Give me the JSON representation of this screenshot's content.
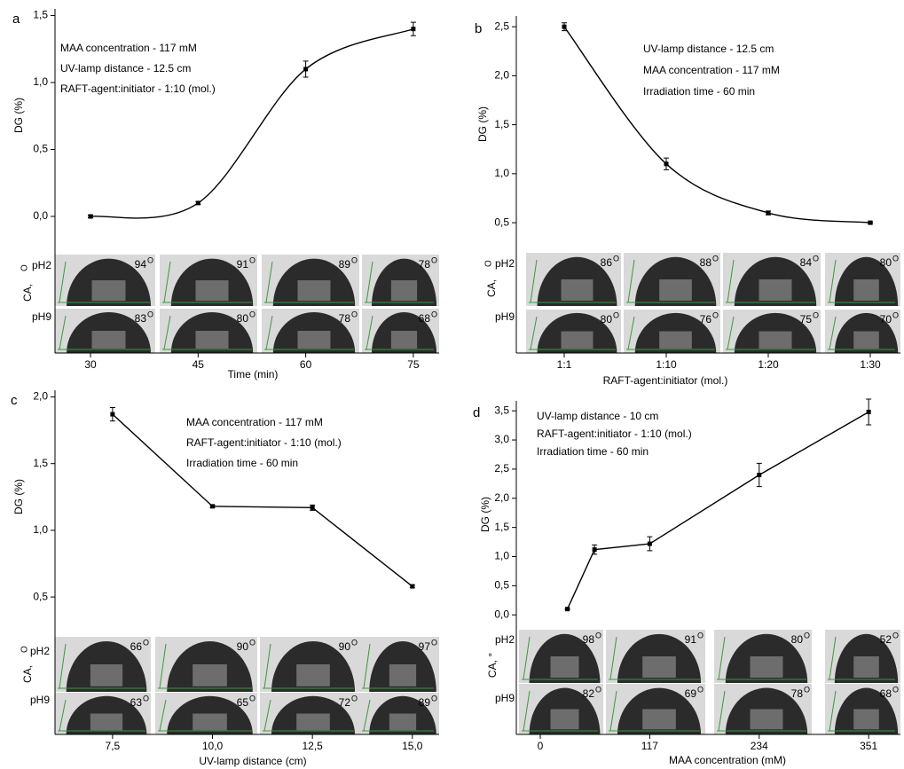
{
  "chart_data": [
    {
      "type": "line",
      "smooth": true,
      "panel": "a",
      "color": "#000000",
      "annotations": [
        "MAA concentration - 117 mM",
        "UV-lamp distance - 12.5 cm",
        "RAFT-agent:initiator - 1:10 (mol.)"
      ],
      "x": [
        30,
        45,
        60,
        75
      ],
      "values": [
        0,
        0.1,
        1.1,
        1.4
      ],
      "errors": [
        0.01,
        0.01,
        0.06,
        0.05
      ],
      "xlim": [
        25.05,
        78.6
      ],
      "xticks": [
        30,
        45,
        60,
        75
      ],
      "ylim": [
        -1.02,
        1.55
      ],
      "yticks": [
        {
          "value": 0,
          "label": "0,0"
        },
        {
          "value": 0.5,
          "label": "0,5"
        },
        {
          "value": 1,
          "label": "1,0"
        },
        {
          "value": 1.5,
          "label": "1,5"
        }
      ],
      "x_label": "Time (min)",
      "y_label": "DG (%)",
      "ca_label": "CA, ",
      "angle_unit": "O",
      "insets": [
        {
          "label": "pH2",
          "angles": [
            94,
            91,
            89,
            78
          ]
        },
        {
          "label": "pH9",
          "angles": [
            83,
            80,
            78,
            68
          ]
        }
      ]
    },
    {
      "type": "line",
      "smooth": true,
      "panel": "b",
      "color": "#000000",
      "annotations": [
        "UV-lamp distance - 12.5 cm",
        "MAA concentration - 117 mM",
        "Irradiation time - 60 min"
      ],
      "categories": [
        "1:1",
        "1:10",
        "1:20",
        "1:30"
      ],
      "values": [
        2.5,
        1.1,
        0.6,
        0.5
      ],
      "errors": [
        0.04,
        0.06,
        0.02,
        0.01
      ],
      "ylim": [
        -0.83,
        2.61
      ],
      "yticks": [
        {
          "value": 0.5,
          "label": "0,5"
        },
        {
          "value": 1,
          "label": "1,0"
        },
        {
          "value": 1.5,
          "label": "1,5"
        },
        {
          "value": 2,
          "label": "2,0"
        },
        {
          "value": 2.5,
          "label": "2,5"
        }
      ],
      "x_label": "RAFT-agent:initiator (mol.)",
      "y_label": "DG (%)",
      "ca_label": "CA, ",
      "angle_unit": "O",
      "insets": [
        {
          "label": "pH2",
          "angles": [
            86,
            88,
            84,
            80
          ]
        },
        {
          "label": "pH9",
          "angles": [
            80,
            76,
            75,
            70
          ]
        }
      ]
    },
    {
      "type": "line",
      "smooth": false,
      "panel": "c",
      "color": "#000000",
      "annotations": [
        "MAA concentration - 117 mM",
        "RAFT-agent:initiator - 1:10 (mol.)",
        "Irradiation time - 60 min"
      ],
      "x": [
        7.5,
        10,
        12.5,
        15
      ],
      "values": [
        1.87,
        1.18,
        1.17,
        0.58
      ],
      "errors": [
        0.05,
        0.01,
        0.02,
        0.01
      ],
      "xlim": [
        6.06,
        15.67
      ],
      "xticks": [
        {
          "value": 7.5,
          "label": "7,5"
        },
        {
          "value": 10,
          "label": "10,0"
        },
        {
          "value": 12.5,
          "label": "12,5"
        },
        {
          "value": 15,
          "label": "15,0"
        }
      ],
      "ylim": [
        -0.53,
        2.05
      ],
      "yticks": [
        {
          "value": 0.5,
          "label": "0,5"
        },
        {
          "value": 1,
          "label": "1,0"
        },
        {
          "value": 1.5,
          "label": "1,5"
        },
        {
          "value": 2,
          "label": "2,0"
        }
      ],
      "x_label": "UV-lamp distance (cm)",
      "y_label": "DG (%)",
      "ca_label": "CA, ",
      "angle_unit": "O",
      "insets": [
        {
          "label": "pH2",
          "angles": [
            66,
            90,
            90,
            97
          ]
        },
        {
          "label": "pH9",
          "angles": [
            63,
            65,
            72,
            89
          ]
        }
      ]
    },
    {
      "type": "line",
      "smooth": false,
      "panel": "d",
      "color": "#000000",
      "annotations": [
        "UV-lamp distance - 10 cm",
        "RAFT-agent:initiator - 1:10 (mol.)",
        "Irradiation time - 60 min"
      ],
      "x": [
        29,
        58,
        117,
        234,
        351
      ],
      "values": [
        0.1,
        1.12,
        1.22,
        2.4,
        3.48
      ],
      "errors": [
        0.01,
        0.08,
        0.12,
        0.2,
        0.22
      ],
      "xlim": [
        -25.6,
        385
      ],
      "xticks": [
        0,
        117,
        234,
        351
      ],
      "ylim": [
        -2.05,
        3.67
      ],
      "yticks": [
        {
          "value": 0,
          "label": "0,0"
        },
        {
          "value": 0.5,
          "label": "0,5"
        },
        {
          "value": 1,
          "label": "1,0"
        },
        {
          "value": 1.5,
          "label": "1,5"
        },
        {
          "value": 2,
          "label": "2,0"
        },
        {
          "value": 2.5,
          "label": "2,5"
        },
        {
          "value": 3,
          "label": "3,0"
        },
        {
          "value": 3.5,
          "label": "3,5"
        }
      ],
      "x_label": "MAA concentration (mM)",
      "y_label": "DG (%)",
      "ca_label": "CA, °",
      "insets": [
        {
          "label": "pH2",
          "angles": [
            98,
            91,
            80,
            52
          ]
        },
        {
          "label": "pH9",
          "angles": [
            82,
            69,
            78,
            68
          ]
        }
      ],
      "angle_unit": "O"
    }
  ]
}
